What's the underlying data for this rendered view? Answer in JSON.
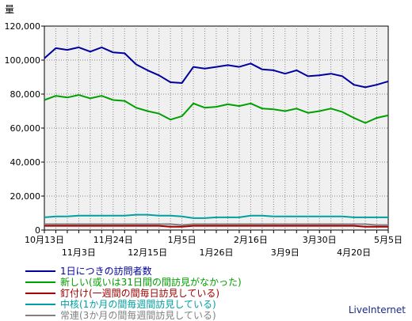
{
  "chart_data": {
    "type": "line",
    "ylabel": "量",
    "ylim": [
      0,
      120000
    ],
    "y_ticks": [
      "0",
      "20,000",
      "40,000",
      "60,000",
      "80,000",
      "100,000",
      "120,000"
    ],
    "y_tick_values": [
      0,
      20000,
      40000,
      60000,
      80000,
      100000,
      120000
    ],
    "x_ticks_top": [
      {
        "i": 0,
        "label": "10月13日"
      },
      {
        "i": 6,
        "label": "11月24日"
      },
      {
        "i": 12,
        "label": "1月5日"
      },
      {
        "i": 18,
        "label": "2月16日"
      },
      {
        "i": 24,
        "label": "3月30日"
      },
      {
        "i": 30,
        "label": "5月5日"
      }
    ],
    "x_ticks_bottom": [
      {
        "i": 3,
        "label": "11月3日"
      },
      {
        "i": 9,
        "label": "12月15日"
      },
      {
        "i": 15,
        "label": "1月26日"
      },
      {
        "i": 21,
        "label": "3月9日"
      },
      {
        "i": 27,
        "label": "4月20日"
      }
    ],
    "grid": true,
    "legend_position": "bottom-left",
    "series": [
      {
        "name": "1日につきの訪問者数",
        "color": "#0000a0",
        "values": [
          101000,
          107000,
          106000,
          107500,
          105000,
          107500,
          104500,
          104000,
          97500,
          94000,
          91000,
          87000,
          86500,
          96000,
          95000,
          96000,
          97000,
          96000,
          98000,
          94500,
          94000,
          92000,
          94000,
          90500,
          91000,
          92000,
          90500,
          85500,
          84000,
          85500,
          87500
        ]
      },
      {
        "name": "新しい(或いは31日間の間訪見がなかった)",
        "color": "#00a000",
        "values": [
          76500,
          79000,
          78000,
          79500,
          77500,
          79000,
          76500,
          76000,
          72000,
          70000,
          68500,
          65000,
          67000,
          74500,
          72000,
          72500,
          74000,
          73000,
          74500,
          71500,
          71000,
          70000,
          71500,
          69000,
          70000,
          71500,
          69500,
          66000,
          63000,
          66000,
          67500
        ]
      },
      {
        "name": "釘付け(一週間の間毎日訪見している)",
        "color": "#a00000",
        "values": [
          2500,
          2500,
          2500,
          2500,
          2500,
          2500,
          2500,
          2500,
          2500,
          2500,
          2500,
          2000,
          2000,
          2500,
          2500,
          2500,
          2500,
          2500,
          2500,
          2500,
          2500,
          2500,
          2500,
          2500,
          2500,
          2500,
          2500,
          2500,
          2000,
          2000,
          2000
        ]
      },
      {
        "name": "中核(1か月の間毎週間訪見している)",
        "color": "#00a0a0",
        "values": [
          7500,
          8000,
          8000,
          8500,
          8500,
          8500,
          8500,
          8500,
          9000,
          9000,
          8500,
          8500,
          8000,
          7000,
          7000,
          7500,
          7500,
          7500,
          8500,
          8500,
          8000,
          8000,
          8000,
          8000,
          8000,
          8000,
          8000,
          7500,
          7500,
          7500,
          7500
        ]
      },
      {
        "name": "常連(3か月の間毎週間訪見している)",
        "color": "#808080",
        "values": [
          3500,
          3500,
          3500,
          3500,
          3500,
          3500,
          3500,
          3500,
          3500,
          3500,
          3500,
          3500,
          3000,
          3500,
          3500,
          3500,
          3500,
          3500,
          3500,
          3500,
          3500,
          3500,
          3500,
          3500,
          3500,
          3500,
          3500,
          3500,
          3500,
          3000,
          3000
        ]
      }
    ]
  },
  "brand": "LiveInternet"
}
